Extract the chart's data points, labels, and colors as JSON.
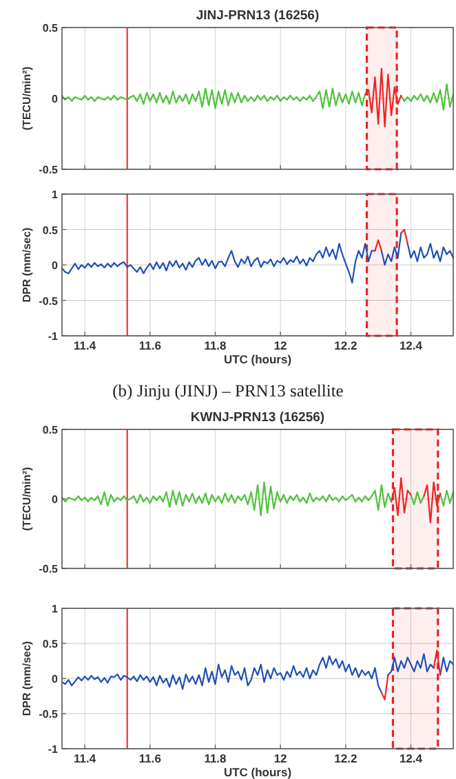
{
  "chart_data": [
    {
      "type": "line",
      "title": "JINJ-PRN13 (16256)",
      "ylabel": "(TECU/min²)",
      "xlim": [
        11.33,
        12.53
      ],
      "xticks": [
        11.4,
        11.6,
        11.8,
        12,
        12.2,
        12.4
      ],
      "ylim": [
        -0.5,
        0.5
      ],
      "yticks": [
        -0.5,
        0,
        0.5
      ],
      "tick_labels": "y",
      "grid": true,
      "line_style": "solid",
      "x": [
        11.33,
        11.34,
        11.35,
        11.36,
        11.37,
        11.38,
        11.39,
        11.4,
        11.41,
        11.42,
        11.43,
        11.44,
        11.45,
        11.46,
        11.47,
        11.48,
        11.49,
        11.5,
        11.51,
        11.52,
        11.53,
        11.54,
        11.55,
        11.56,
        11.57,
        11.58,
        11.59,
        11.6,
        11.61,
        11.62,
        11.63,
        11.64,
        11.65,
        11.66,
        11.67,
        11.68,
        11.69,
        11.7,
        11.71,
        11.72,
        11.73,
        11.74,
        11.75,
        11.76,
        11.77,
        11.78,
        11.79,
        11.8,
        11.81,
        11.82,
        11.83,
        11.84,
        11.85,
        11.86,
        11.87,
        11.88,
        11.89,
        11.9,
        11.91,
        11.92,
        11.93,
        11.94,
        11.95,
        11.96,
        11.97,
        11.98,
        11.99,
        12.0,
        12.01,
        12.02,
        12.03,
        12.04,
        12.05,
        12.06,
        12.07,
        12.08,
        12.09,
        12.1,
        12.11,
        12.12,
        12.13,
        12.14,
        12.15,
        12.16,
        12.17,
        12.18,
        12.19,
        12.2,
        12.21,
        12.22,
        12.23,
        12.24,
        12.25,
        12.26,
        12.27,
        12.28,
        12.29,
        12.3,
        12.31,
        12.32,
        12.33,
        12.34,
        12.35,
        12.36,
        12.37,
        12.38,
        12.39,
        12.4,
        12.41,
        12.42,
        12.43,
        12.44,
        12.45,
        12.46,
        12.47,
        12.48,
        12.49,
        12.5,
        12.51,
        12.52,
        12.53
      ],
      "series": [
        {
          "color": "#4fc23a",
          "values": [
            0.02,
            -0.01,
            0.01,
            -0.02,
            0.01,
            0,
            -0.01,
            0.02,
            -0.01,
            0.01,
            -0.02,
            0.01,
            0,
            -0.01,
            0.01,
            -0.01,
            0.02,
            -0.01,
            0.01,
            0,
            -0.01,
            0.01,
            0.02,
            -0.02,
            0.03,
            -0.04,
            0.04,
            -0.02,
            0.03,
            -0.03,
            0.04,
            -0.03,
            0.02,
            -0.04,
            0.05,
            -0.03,
            0.02,
            -0.02,
            0.03,
            -0.04,
            0.03,
            -0.02,
            0.05,
            -0.06,
            0.07,
            -0.05,
            0.06,
            -0.07,
            0.05,
            -0.04,
            0.06,
            -0.05,
            0.04,
            -0.03,
            0.04,
            -0.03,
            0.02,
            -0.02,
            0.01,
            -0.02,
            0.02,
            -0.01,
            0.02,
            -0.02,
            0.01,
            -0.01,
            0.02,
            -0.02,
            0.01,
            -0.01,
            0.02,
            -0.01,
            0.01,
            -0.02,
            0.01,
            -0.01,
            0.02,
            -0.02,
            0.01,
            0.05,
            -0.07,
            0.06,
            -0.06,
            0.07,
            -0.05,
            0.04,
            -0.03,
            0.03,
            -0.04,
            0.05,
            -0.03,
            0.04,
            -0.05,
            0.03,
            null,
            null,
            null,
            null,
            null,
            null,
            null,
            null,
            null,
            null,
            0.02,
            -0.02,
            0.01,
            -0.02,
            0.02,
            -0.01,
            0.03,
            -0.02,
            0.02,
            -0.03,
            0.04,
            -0.03,
            0.06,
            -0.08,
            0.1,
            -0.06,
            0.03
          ]
        },
        {
          "color": "#ee2222",
          "x": [
            12.26,
            12.27,
            12.28,
            12.29,
            12.3,
            12.31,
            12.32,
            12.33,
            12.34,
            12.35,
            12.36,
            12.37
          ],
          "values": [
            0.03,
            0.06,
            -0.1,
            0.15,
            -0.18,
            0.21,
            -0.2,
            0.17,
            -0.12,
            0.08,
            -0.04,
            0.02
          ]
        }
      ],
      "ref_lines": [
        {
          "axis": "x",
          "value": 11.53,
          "color": "#ee2222",
          "line_style": "solid"
        }
      ],
      "bands": [
        {
          "axis": "x",
          "from": 12.265,
          "to": 12.357,
          "color": "#ee2222"
        }
      ]
    },
    {
      "type": "line",
      "xlabel": "UTC (hours)",
      "ylabel": "DPR (mm/sec)",
      "xlim": [
        11.33,
        12.53
      ],
      "xticks": [
        11.4,
        11.6,
        11.8,
        12,
        12.2,
        12.4
      ],
      "ylim": [
        -1,
        1
      ],
      "yticks": [
        -1,
        -0.5,
        0,
        0.5,
        1
      ],
      "grid": true,
      "line_style": "solid",
      "annotations": [
        "(b) Jinju (JINJ) – PRN13 satellite"
      ],
      "x": [
        11.33,
        11.34,
        11.35,
        11.36,
        11.37,
        11.38,
        11.39,
        11.4,
        11.41,
        11.42,
        11.43,
        11.44,
        11.45,
        11.46,
        11.47,
        11.48,
        11.49,
        11.5,
        11.51,
        11.52,
        11.53,
        11.54,
        11.55,
        11.56,
        11.57,
        11.58,
        11.59,
        11.6,
        11.61,
        11.62,
        11.63,
        11.64,
        11.65,
        11.66,
        11.67,
        11.68,
        11.69,
        11.7,
        11.71,
        11.72,
        11.73,
        11.74,
        11.75,
        11.76,
        11.77,
        11.78,
        11.79,
        11.8,
        11.81,
        11.82,
        11.83,
        11.84,
        11.85,
        11.86,
        11.87,
        11.88,
        11.89,
        11.9,
        11.91,
        11.92,
        11.93,
        11.94,
        11.95,
        11.96,
        11.97,
        11.98,
        11.99,
        12.0,
        12.01,
        12.02,
        12.03,
        12.04,
        12.05,
        12.06,
        12.07,
        12.08,
        12.09,
        12.1,
        12.11,
        12.12,
        12.13,
        12.14,
        12.15,
        12.16,
        12.17,
        12.18,
        12.19,
        12.2,
        12.21,
        12.22,
        12.23,
        12.24,
        12.25,
        12.26,
        12.27,
        12.28,
        12.29,
        12.3,
        12.31,
        12.32,
        12.33,
        12.34,
        12.35,
        12.36,
        12.37,
        12.38,
        12.39,
        12.4,
        12.41,
        12.42,
        12.43,
        12.44,
        12.45,
        12.46,
        12.47,
        12.48,
        12.49,
        12.5,
        12.51,
        12.52,
        12.53
      ],
      "series": [
        {
          "color": "#1f4fb5",
          "values": [
            -0.05,
            -0.1,
            -0.12,
            -0.05,
            0.02,
            -0.06,
            0,
            -0.04,
            0.02,
            -0.03,
            0.03,
            -0.02,
            0.01,
            -0.04,
            0.02,
            -0.03,
            0.03,
            -0.02,
            0.02,
            0.04,
            -0.03,
            0,
            -0.05,
            -0.1,
            -0.03,
            -0.12,
            -0.04,
            0.02,
            -0.06,
            0.04,
            -0.05,
            0.03,
            -0.08,
            0.05,
            -0.02,
            0.06,
            -0.04,
            0.02,
            -0.07,
            0.04,
            -0.03,
            0.06,
            0.1,
            0,
            0.08,
            -0.02,
            0.06,
            -0.05,
            0.04,
            0.05,
            -0.02,
            0.1,
            0.2,
            0.05,
            -0.03,
            0.08,
            0.02,
            0.12,
            -0.02,
            0.06,
            0.1,
            -0.03,
            0.05,
            0.02,
            0.08,
            -0.02,
            0.06,
            0.03,
            0.1,
            0.01,
            0.07,
            0.04,
            0.12,
            0.02,
            0.08,
            -0.01,
            0.1,
            0.05,
            0.15,
            0.2,
            0.1,
            0.25,
            0.12,
            0.22,
            0.08,
            0.3,
            0.15,
            0.02,
            -0.1,
            -0.25,
            0.05,
            0.2,
            0.1,
            0.3,
            0.05,
            0.2,
            0.2,
            null,
            0.2,
            0,
            0.15,
            0.05,
            0.25,
            0.1,
            0.45,
            null,
            0.3,
            0.1,
            0.2,
            0.05,
            0.25,
            0.1,
            0.15,
            0.3,
            0.1,
            0.2,
            0.05,
            0.25,
            0.15,
            0.2,
            0.1
          ]
        },
        {
          "color": "#ee2222",
          "x": [
            12.29,
            12.3,
            12.31,
            12.34,
            12.37,
            12.38,
            12.39
          ],
          "values": [
            0.2,
            0.35,
            0.2,
            null,
            0.45,
            0.5,
            0.3
          ]
        }
      ],
      "ref_lines": [
        {
          "axis": "x",
          "value": 11.53,
          "color": "#ee2222",
          "line_style": "solid"
        }
      ],
      "bands": [
        {
          "axis": "x",
          "from": 12.265,
          "to": 12.357,
          "color": "#ee2222"
        }
      ]
    },
    {
      "type": "line",
      "title": "KWNJ-PRN13 (16256)",
      "ylabel": "(TECU/min²)",
      "xlim": [
        11.33,
        12.53
      ],
      "xticks": [
        11.4,
        11.6,
        11.8,
        12,
        12.2,
        12.4
      ],
      "ylim": [
        -0.5,
        0.5
      ],
      "yticks": [
        -0.5,
        0,
        0.5
      ],
      "tick_labels": "y",
      "grid": true,
      "line_style": "solid",
      "x": [
        11.33,
        11.34,
        11.35,
        11.36,
        11.37,
        11.38,
        11.39,
        11.4,
        11.41,
        11.42,
        11.43,
        11.44,
        11.45,
        11.46,
        11.47,
        11.48,
        11.49,
        11.5,
        11.51,
        11.52,
        11.53,
        11.54,
        11.55,
        11.56,
        11.57,
        11.58,
        11.59,
        11.6,
        11.61,
        11.62,
        11.63,
        11.64,
        11.65,
        11.66,
        11.67,
        11.68,
        11.69,
        11.7,
        11.71,
        11.72,
        11.73,
        11.74,
        11.75,
        11.76,
        11.77,
        11.78,
        11.79,
        11.8,
        11.81,
        11.82,
        11.83,
        11.84,
        11.85,
        11.86,
        11.87,
        11.88,
        11.89,
        11.9,
        11.91,
        11.92,
        11.93,
        11.94,
        11.95,
        11.96,
        11.97,
        11.98,
        11.99,
        12.0,
        12.01,
        12.02,
        12.03,
        12.04,
        12.05,
        12.06,
        12.07,
        12.08,
        12.09,
        12.1,
        12.11,
        12.12,
        12.13,
        12.14,
        12.15,
        12.16,
        12.17,
        12.18,
        12.19,
        12.2,
        12.21,
        12.22,
        12.23,
        12.24,
        12.25,
        12.26,
        12.27,
        12.28,
        12.29,
        12.3,
        12.31,
        12.32,
        12.33,
        12.34,
        12.35,
        12.36,
        12.37,
        12.38,
        12.39,
        12.4,
        12.41,
        12.42,
        12.43,
        12.44,
        12.45,
        12.46,
        12.47,
        12.48,
        12.49,
        12.5,
        12.51,
        12.52,
        12.53
      ],
      "series": [
        {
          "color": "#4fc23a",
          "values": [
            0.01,
            -0.02,
            0.01,
            0,
            -0.01,
            0.02,
            -0.01,
            0.01,
            -0.02,
            0.01,
            -0.01,
            0.02,
            -0.04,
            0.05,
            -0.05,
            0.03,
            -0.02,
            0.01,
            -0.01,
            0.02,
            -0.01,
            0,
            0.02,
            -0.03,
            0.03,
            -0.02,
            0.01,
            -0.03,
            0.02,
            -0.01,
            0.02,
            -0.02,
            0.05,
            -0.06,
            0.06,
            -0.04,
            0.05,
            -0.05,
            0.03,
            -0.02,
            0.04,
            -0.03,
            0.02,
            -0.03,
            0.04,
            -0.04,
            0.03,
            -0.02,
            0.02,
            -0.03,
            0.04,
            -0.02,
            0.03,
            -0.03,
            0.02,
            -0.01,
            0.03,
            -0.04,
            0.05,
            -0.08,
            0.1,
            -0.12,
            0.12,
            -0.1,
            0.09,
            -0.07,
            0.05,
            -0.02,
            0.03,
            -0.03,
            0.02,
            -0.01,
            0.03,
            -0.02,
            0.01,
            -0.03,
            0.04,
            -0.02,
            0.01,
            -0.01,
            0.02,
            -0.02,
            0.03,
            -0.01,
            0.01,
            -0.02,
            0.02,
            -0.01,
            0.01,
            0.03,
            -0.02,
            0.01,
            -0.02,
            0.02,
            -0.01,
            0.02,
            0.06,
            -0.08,
            0.1,
            -0.06,
            0.04,
            -0.02,
            null,
            null,
            null,
            null,
            null,
            0.03,
            -0.04,
            0.05,
            -0.03,
            0.02,
            null,
            null,
            null,
            null,
            0.04,
            -0.05,
            0.06,
            -0.03,
            0.05
          ]
        },
        {
          "color": "#ee2222",
          "x": [
            12.34,
            12.35,
            12.36,
            12.37,
            12.38,
            12.39,
            12.4,
            12.42,
            12.44,
            12.45,
            12.46,
            12.47,
            12.48,
            12.49
          ],
          "values": [
            -0.02,
            0.08,
            -0.12,
            0.15,
            -0.1,
            0.06,
            0.03,
            null,
            0.02,
            0.1,
            -0.17,
            0.12,
            -0.05,
            0.04
          ]
        }
      ],
      "ref_lines": [
        {
          "axis": "x",
          "value": 11.53,
          "color": "#ee2222",
          "line_style": "solid"
        }
      ],
      "bands": [
        {
          "axis": "x",
          "from": 12.345,
          "to": 12.483,
          "color": "#ee2222"
        }
      ]
    },
    {
      "type": "line",
      "xlabel": "UTC (hours)",
      "ylabel": "DPR (mm/sec)",
      "xlim": [
        11.33,
        12.53
      ],
      "xticks": [
        11.4,
        11.6,
        11.8,
        12,
        12.2,
        12.4
      ],
      "ylim": [
        -1,
        1
      ],
      "yticks": [
        -1,
        -0.5,
        0,
        0.5,
        1
      ],
      "grid": true,
      "line_style": "solid",
      "x": [
        11.33,
        11.34,
        11.35,
        11.36,
        11.37,
        11.38,
        11.39,
        11.4,
        11.41,
        11.42,
        11.43,
        11.44,
        11.45,
        11.46,
        11.47,
        11.48,
        11.49,
        11.5,
        11.51,
        11.52,
        11.53,
        11.54,
        11.55,
        11.56,
        11.57,
        11.58,
        11.59,
        11.6,
        11.61,
        11.62,
        11.63,
        11.64,
        11.65,
        11.66,
        11.67,
        11.68,
        11.69,
        11.7,
        11.71,
        11.72,
        11.73,
        11.74,
        11.75,
        11.76,
        11.77,
        11.78,
        11.79,
        11.8,
        11.81,
        11.82,
        11.83,
        11.84,
        11.85,
        11.86,
        11.87,
        11.88,
        11.89,
        11.9,
        11.91,
        11.92,
        11.93,
        11.94,
        11.95,
        11.96,
        11.97,
        11.98,
        11.99,
        12.0,
        12.01,
        12.02,
        12.03,
        12.04,
        12.05,
        12.06,
        12.07,
        12.08,
        12.09,
        12.1,
        12.11,
        12.12,
        12.13,
        12.14,
        12.15,
        12.16,
        12.17,
        12.18,
        12.19,
        12.2,
        12.21,
        12.22,
        12.23,
        12.24,
        12.25,
        12.26,
        12.27,
        12.28,
        12.29,
        12.3,
        12.31,
        12.32,
        12.33,
        12.34,
        12.35,
        12.36,
        12.37,
        12.38,
        12.39,
        12.4,
        12.41,
        12.42,
        12.43,
        12.44,
        12.45,
        12.46,
        12.47,
        12.48,
        12.49,
        12.5,
        12.51,
        12.52,
        12.53
      ],
      "series": [
        {
          "color": "#1f4fb5",
          "values": [
            -0.05,
            -0.08,
            -0.02,
            -0.1,
            -0.04,
            0.02,
            -0.03,
            0.03,
            -0.02,
            0.04,
            -0.01,
            0.02,
            -0.05,
            0.01,
            -0.06,
            0.03,
            0.02,
            0.06,
            -0.02,
            0.04,
            0.02,
            -0.02,
            0.03,
            -0.04,
            0.05,
            -0.02,
            0.03,
            -0.05,
            0.02,
            -0.1,
            0.04,
            -0.06,
            0,
            -0.12,
            0.05,
            -0.08,
            0.02,
            -0.15,
            0.06,
            -0.05,
            0.03,
            -0.08,
            0.05,
            -0.1,
            0.15,
            -0.05,
            0.1,
            -0.08,
            0.2,
            0.02,
            0.12,
            -0.05,
            0.18,
            0.05,
            0.1,
            -0.02,
            0.15,
            -0.1,
            -0.02,
            0.15,
            0.05,
            0.2,
            -0.05,
            0.12,
            0,
            0.15,
            0.05,
            0.08,
            -0.02,
            0.1,
            0.02,
            0.18,
            0.05,
            0.1,
            0.02,
            0.15,
            0,
            0.12,
            0.05,
            0.2,
            0.3,
            0.15,
            0.32,
            0.2,
            0.28,
            0.15,
            0.25,
            0.1,
            0.2,
            0.05,
            0.15,
            0.02,
            0.12,
            0.05,
            0.1,
            0,
            0.15,
            -0.1,
            -0.2,
            null,
            0.05,
            0.1,
            0.3,
            0.1,
            0.25,
            0.15,
            0.3,
            0.2,
            0.1,
            0.25,
            0.15,
            0.35,
            0.1,
            0.2,
            0.15,
            null,
            0.05,
            0.3,
            0.1,
            0.25,
            0.2
          ]
        },
        {
          "color": "#ee2222",
          "x": [
            12.31,
            12.32,
            12.33,
            12.4,
            12.47,
            12.48,
            12.49
          ],
          "values": [
            -0.2,
            -0.3,
            0.05,
            null,
            0.15,
            0.4,
            0.05
          ]
        }
      ],
      "ref_lines": [
        {
          "axis": "x",
          "value": 11.53,
          "color": "#ee2222",
          "line_style": "solid"
        }
      ],
      "bands": [
        {
          "axis": "x",
          "from": 12.345,
          "to": 12.483,
          "color": "#ee2222"
        }
      ]
    }
  ]
}
